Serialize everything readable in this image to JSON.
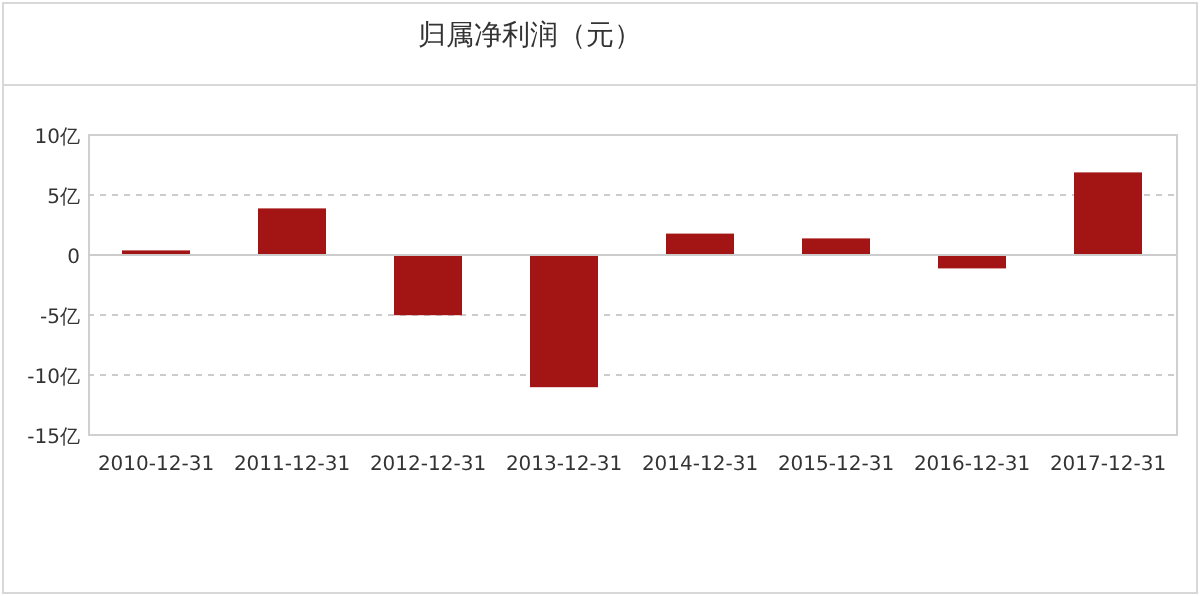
{
  "chart_data": {
    "type": "bar",
    "title": "归属净利润（元）",
    "categories": [
      "2010-12-31",
      "2011-12-31",
      "2012-12-31",
      "2013-12-31",
      "2014-12-31",
      "2015-12-31",
      "2016-12-31",
      "2017-12-31"
    ],
    "values": [
      0.3,
      3.8,
      -5.1,
      -11.1,
      1.7,
      1.3,
      -1.2,
      6.8
    ],
    "color": "#a31515",
    "ylim": [
      -15,
      10
    ],
    "yticks": [
      {
        "value": -15,
        "label": "-15亿"
      },
      {
        "value": -10,
        "label": "-10亿"
      },
      {
        "value": -5,
        "label": "-5亿"
      },
      0,
      {
        "value": 5,
        "label": "5亿"
      },
      {
        "value": 10,
        "label": "10亿"
      }
    ],
    "grid": "y"
  }
}
